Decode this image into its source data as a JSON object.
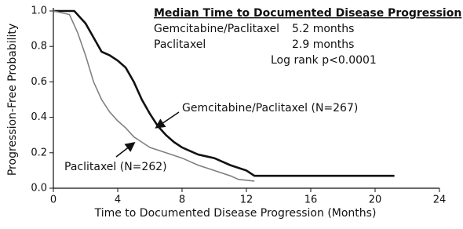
{
  "chart_data": {
    "type": "line",
    "xlabel": "Time to Documented Disease Progression (Months)",
    "ylabel": "Progression-Free Probability",
    "xlim": [
      0,
      24
    ],
    "xticks": [
      0,
      4,
      8,
      12,
      16,
      20,
      24
    ],
    "ylim": [
      0,
      1
    ],
    "yticks": [
      {
        "value": 0,
        "label": "0.0"
      },
      {
        "value": 0.2,
        "label": "0.2"
      },
      {
        "value": 0.4,
        "label": "0.4"
      },
      {
        "value": 0.6,
        "label": "0.6"
      },
      {
        "value": 0.8,
        "label": "0.8"
      },
      {
        "value": 1,
        "label": "1.0"
      }
    ],
    "series": [
      {
        "name": "Gemcitabine/Paclitaxel (N=267)",
        "color": "#111111",
        "x": [
          0,
          1.3,
          2,
          2.5,
          3,
          3.5,
          4,
          4.5,
          5,
          5.5,
          6,
          6.5,
          7,
          7.5,
          8,
          8.5,
          9,
          10,
          11,
          12,
          12.5,
          21.2
        ],
        "values": [
          1,
          1,
          0.93,
          0.85,
          0.77,
          0.75,
          0.72,
          0.68,
          0.6,
          0.5,
          0.42,
          0.35,
          0.3,
          0.26,
          0.23,
          0.21,
          0.19,
          0.17,
          0.13,
          0.1,
          0.07,
          0.07
        ]
      },
      {
        "name": "Paclitaxel (N=262)",
        "color": "#808080",
        "x": [
          0,
          1,
          1.5,
          2,
          2.5,
          3,
          3.5,
          4,
          4.5,
          5,
          5.5,
          6,
          7,
          8,
          9,
          10,
          11,
          11.5,
          12.5
        ],
        "values": [
          1,
          0.98,
          0.88,
          0.75,
          0.6,
          0.5,
          0.43,
          0.38,
          0.34,
          0.29,
          0.26,
          0.23,
          0.2,
          0.17,
          0.13,
          0.1,
          0.07,
          0.05,
          0.04
        ]
      }
    ],
    "annotations": {
      "heading": "Median Time to Documented Disease Progression",
      "rows": [
        [
          "Gemcitabine/Paclitaxel",
          "5.2 months"
        ],
        [
          "Paclitaxel",
          "2.9 months"
        ]
      ],
      "note": "Log rank p<0.0001"
    }
  }
}
